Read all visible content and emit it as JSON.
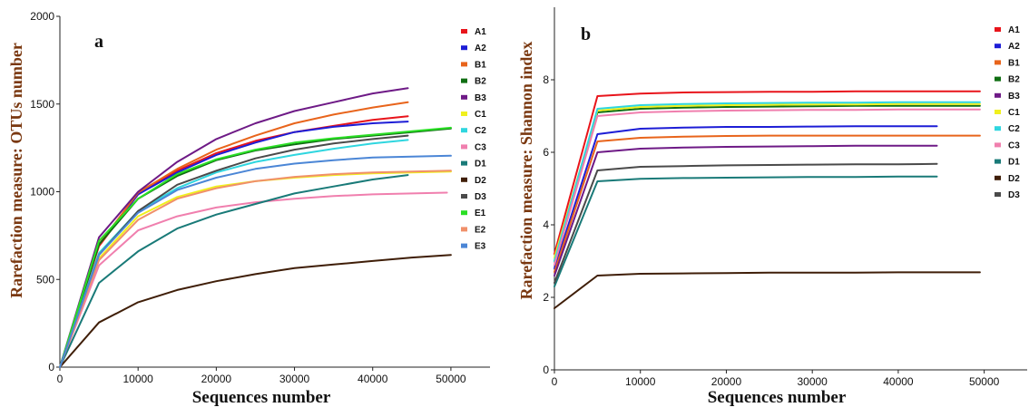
{
  "chart_data": [
    {
      "type": "line",
      "panel_label": "a",
      "xlabel": "Sequences number",
      "ylabel": "Rarefaction measure:  OTUs number",
      "xlim": [
        0,
        55000
      ],
      "ylim": [
        0,
        2000
      ],
      "xticks": [
        0,
        10000,
        20000,
        30000,
        40000,
        50000
      ],
      "yticks": [
        0,
        500,
        1000,
        1500,
        2000
      ],
      "legend_position": "right",
      "series": [
        {
          "name": "A1",
          "color": "#e8141b",
          "x": [
            0,
            5000,
            10000,
            15000,
            20000,
            25000,
            30000,
            35000,
            40000,
            44500
          ],
          "y": [
            0,
            690,
            985,
            1120,
            1220,
            1290,
            1340,
            1375,
            1410,
            1430
          ]
        },
        {
          "name": "A2",
          "color": "#1d1dd6",
          "x": [
            0,
            5000,
            10000,
            15000,
            20000,
            25000,
            30000,
            35000,
            40000,
            44500
          ],
          "y": [
            0,
            700,
            985,
            1110,
            1210,
            1280,
            1340,
            1370,
            1390,
            1400
          ]
        },
        {
          "name": "B1",
          "color": "#e8641b",
          "x": [
            0,
            5000,
            10000,
            15000,
            20000,
            25000,
            30000,
            35000,
            40000,
            44500
          ],
          "y": [
            0,
            700,
            995,
            1130,
            1240,
            1320,
            1390,
            1440,
            1480,
            1510
          ]
        },
        {
          "name": "B2",
          "color": "#0f6e12",
          "x": [
            0,
            5000,
            10000,
            15000,
            20000,
            25000,
            30000,
            35000,
            40000,
            45000,
            50000
          ],
          "y": [
            0,
            700,
            960,
            1090,
            1180,
            1235,
            1270,
            1300,
            1320,
            1340,
            1360
          ]
        },
        {
          "name": "B3",
          "color": "#6e1a86",
          "x": [
            0,
            5000,
            10000,
            15000,
            20000,
            25000,
            30000,
            35000,
            40000,
            44500
          ],
          "y": [
            0,
            740,
            1000,
            1170,
            1300,
            1390,
            1460,
            1510,
            1560,
            1590
          ]
        },
        {
          "name": "C1",
          "color": "#f0f01e",
          "x": [
            0,
            5000,
            10000,
            15000,
            20000,
            25000,
            30000,
            35000,
            40000,
            45000,
            50000
          ],
          "y": [
            0,
            620,
            860,
            970,
            1030,
            1060,
            1080,
            1095,
            1105,
            1110,
            1115
          ]
        },
        {
          "name": "C2",
          "color": "#2fd6df",
          "x": [
            0,
            5000,
            10000,
            15000,
            20000,
            25000,
            30000,
            35000,
            40000,
            44500
          ],
          "y": [
            0,
            650,
            890,
            1020,
            1110,
            1170,
            1210,
            1245,
            1275,
            1295
          ]
        },
        {
          "name": "C3",
          "color": "#f07fae",
          "x": [
            0,
            5000,
            10000,
            15000,
            20000,
            25000,
            30000,
            35000,
            40000,
            45000,
            49500
          ],
          "y": [
            0,
            580,
            780,
            860,
            910,
            940,
            960,
            975,
            985,
            990,
            995
          ]
        },
        {
          "name": "D1",
          "color": "#197a78",
          "x": [
            0,
            5000,
            10000,
            15000,
            20000,
            25000,
            30000,
            35000,
            40000,
            44500
          ],
          "y": [
            0,
            480,
            660,
            790,
            870,
            930,
            990,
            1030,
            1070,
            1095
          ]
        },
        {
          "name": "D2",
          "color": "#3f1e08",
          "x": [
            0,
            5000,
            10000,
            15000,
            20000,
            25000,
            30000,
            35000,
            40000,
            45000,
            50000
          ],
          "y": [
            0,
            255,
            370,
            440,
            490,
            530,
            565,
            585,
            605,
            625,
            640
          ]
        },
        {
          "name": "D3",
          "color": "#4a4a4a",
          "x": [
            0,
            5000,
            10000,
            15000,
            20000,
            25000,
            30000,
            35000,
            40000,
            44500
          ],
          "y": [
            0,
            640,
            890,
            1040,
            1120,
            1190,
            1240,
            1275,
            1300,
            1320
          ]
        },
        {
          "name": "E1",
          "color": "#2adf25",
          "x": [
            0,
            5000,
            10000,
            15000,
            20000,
            25000,
            30000,
            35000,
            40000,
            45000,
            50000
          ],
          "y": [
            0,
            720,
            960,
            1100,
            1185,
            1240,
            1280,
            1305,
            1325,
            1345,
            1365
          ]
        },
        {
          "name": "E2",
          "color": "#f0906a",
          "x": [
            0,
            5000,
            10000,
            15000,
            20000,
            25000,
            30000,
            35000,
            40000,
            45000,
            50000
          ],
          "y": [
            0,
            610,
            840,
            960,
            1020,
            1060,
            1085,
            1100,
            1110,
            1115,
            1120
          ]
        },
        {
          "name": "E3",
          "color": "#4b86d6",
          "x": [
            0,
            5000,
            10000,
            15000,
            20000,
            25000,
            30000,
            35000,
            40000,
            45000,
            50000
          ],
          "y": [
            0,
            640,
            880,
            1010,
            1080,
            1130,
            1160,
            1180,
            1195,
            1200,
            1205
          ]
        }
      ]
    },
    {
      "type": "line",
      "panel_label": "b",
      "xlabel": "Sequences number",
      "ylabel": "Rarefaction measure:  Shannon index",
      "xlim": [
        0,
        55000
      ],
      "ylim": [
        0,
        10
      ],
      "xticks": [
        0,
        10000,
        20000,
        30000,
        40000,
        50000
      ],
      "yticks": [
        0,
        2,
        4,
        6,
        8
      ],
      "legend_position": "right",
      "series": [
        {
          "name": "A1",
          "color": "#e8141b",
          "x": [
            0,
            5000,
            10000,
            15000,
            20000,
            25000,
            30000,
            35000,
            40000,
            45000,
            49500
          ],
          "y": [
            3.2,
            7.55,
            7.62,
            7.65,
            7.66,
            7.67,
            7.67,
            7.68,
            7.68,
            7.68,
            7.68
          ]
        },
        {
          "name": "A2",
          "color": "#1d1dd6",
          "x": [
            0,
            5000,
            10000,
            15000,
            20000,
            25000,
            30000,
            35000,
            40000,
            44500
          ],
          "y": [
            2.8,
            6.5,
            6.65,
            6.68,
            6.7,
            6.7,
            6.71,
            6.72,
            6.72,
            6.72
          ]
        },
        {
          "name": "B1",
          "color": "#e8641b",
          "x": [
            0,
            5000,
            10000,
            15000,
            20000,
            25000,
            30000,
            35000,
            40000,
            45000,
            49500
          ],
          "y": [
            2.7,
            6.3,
            6.4,
            6.43,
            6.45,
            6.46,
            6.46,
            6.46,
            6.46,
            6.46,
            6.46
          ]
        },
        {
          "name": "B2",
          "color": "#0f6e12",
          "x": [
            0,
            5000,
            10000,
            15000,
            20000,
            25000,
            30000,
            35000,
            40000,
            45000,
            49500
          ],
          "y": [
            3.0,
            7.1,
            7.2,
            7.23,
            7.25,
            7.26,
            7.27,
            7.28,
            7.28,
            7.28,
            7.28
          ]
        },
        {
          "name": "B3",
          "color": "#6e1a86",
          "x": [
            0,
            5000,
            10000,
            15000,
            20000,
            25000,
            30000,
            35000,
            40000,
            44500
          ],
          "y": [
            2.6,
            6.0,
            6.1,
            6.13,
            6.15,
            6.16,
            6.17,
            6.18,
            6.18,
            6.18
          ]
        },
        {
          "name": "C1",
          "color": "#f0f01e",
          "x": [
            0,
            5000,
            10000,
            15000,
            20000,
            25000,
            30000,
            35000,
            40000,
            45000,
            49500
          ],
          "y": [
            3.1,
            7.15,
            7.25,
            7.28,
            7.3,
            7.31,
            7.32,
            7.32,
            7.33,
            7.33,
            7.33
          ]
        },
        {
          "name": "C2",
          "color": "#2fd6df",
          "x": [
            0,
            5000,
            10000,
            15000,
            20000,
            25000,
            30000,
            35000,
            40000,
            45000,
            49500
          ],
          "y": [
            3.0,
            7.2,
            7.3,
            7.33,
            7.35,
            7.36,
            7.37,
            7.37,
            7.38,
            7.38,
            7.38
          ]
        },
        {
          "name": "C3",
          "color": "#f07fae",
          "x": [
            0,
            5000,
            10000,
            15000,
            20000,
            25000,
            30000,
            35000,
            40000,
            45000,
            49500
          ],
          "y": [
            2.9,
            7.0,
            7.1,
            7.13,
            7.15,
            7.16,
            7.17,
            7.17,
            7.18,
            7.18,
            7.18
          ]
        },
        {
          "name": "D1",
          "color": "#197a78",
          "x": [
            0,
            5000,
            10000,
            15000,
            20000,
            25000,
            30000,
            35000,
            40000,
            44500
          ],
          "y": [
            2.3,
            5.2,
            5.27,
            5.29,
            5.3,
            5.31,
            5.32,
            5.32,
            5.33,
            5.33
          ]
        },
        {
          "name": "D2",
          "color": "#3f1e08",
          "x": [
            0,
            5000,
            10000,
            15000,
            20000,
            25000,
            30000,
            35000,
            40000,
            45000,
            49500
          ],
          "y": [
            1.7,
            2.6,
            2.65,
            2.66,
            2.67,
            2.68,
            2.68,
            2.68,
            2.69,
            2.69,
            2.69
          ]
        },
        {
          "name": "D3",
          "color": "#4a4a4a",
          "x": [
            0,
            5000,
            10000,
            15000,
            20000,
            25000,
            30000,
            35000,
            40000,
            44500
          ],
          "y": [
            2.4,
            5.5,
            5.6,
            5.62,
            5.64,
            5.65,
            5.66,
            5.67,
            5.67,
            5.68
          ]
        }
      ]
    }
  ]
}
